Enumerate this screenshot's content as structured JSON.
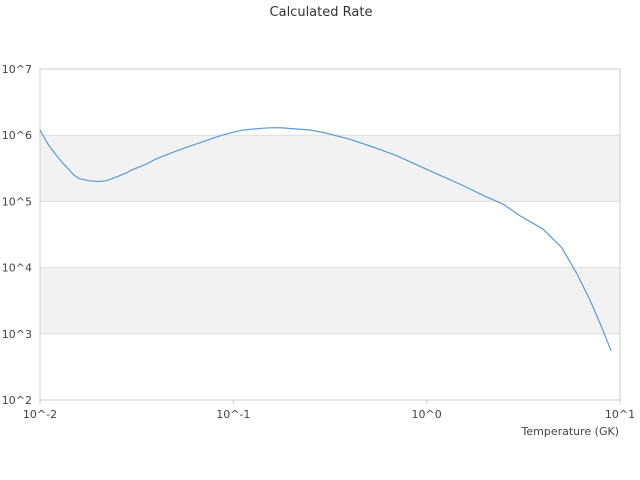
{
  "chart_data": {
    "type": "line",
    "title": "Calculated Rate",
    "xlabel": "Temperature (GK)",
    "ylabel": "",
    "x_scale": "log",
    "y_scale": "log",
    "xlim": [
      0.01,
      10
    ],
    "ylim": [
      100,
      10000000
    ],
    "x_ticks": [
      {
        "value": 0.01,
        "label": "10^-2"
      },
      {
        "value": 0.1,
        "label": "10^-1"
      },
      {
        "value": 1,
        "label": "10^0"
      },
      {
        "value": 10,
        "label": "10^1"
      }
    ],
    "y_ticks": [
      {
        "value": 100,
        "label": "10^2"
      },
      {
        "value": 1000,
        "label": "10^3"
      },
      {
        "value": 10000,
        "label": "10^4"
      },
      {
        "value": 100000,
        "label": "10^5"
      },
      {
        "value": 1000000,
        "label": "10^6"
      },
      {
        "value": 10000000,
        "label": "10^7"
      }
    ],
    "grid": true,
    "alternating_bands": true,
    "legend": "none",
    "colors": {
      "series": "#5b9bd5",
      "band": "#f2f2f2",
      "gridline": "#dddddd",
      "axis": "#cccccc"
    },
    "series": [
      {
        "x": [
          0.01,
          0.011,
          0.012,
          0.013,
          0.014,
          0.015,
          0.016,
          0.018,
          0.02,
          0.022,
          0.025,
          0.028,
          0.03,
          0.035,
          0.04,
          0.05,
          0.06,
          0.07,
          0.08,
          0.09,
          0.1,
          0.11,
          0.12,
          0.14,
          0.16,
          0.18,
          0.2,
          0.25,
          0.3,
          0.4,
          0.5,
          0.6,
          0.7,
          0.8,
          1.0,
          1.2,
          1.5,
          2.0,
          2.5,
          3.0,
          4.0,
          5.0,
          6.0,
          7.0,
          8.0,
          9.0
        ],
        "y": [
          1200000,
          730000,
          520000,
          390000,
          310000,
          250000,
          220000,
          205000,
          200000,
          205000,
          235000,
          270000,
          300000,
          360000,
          440000,
          570000,
          690000,
          800000,
          920000,
          1020000,
          1110000,
          1180000,
          1220000,
          1270000,
          1300000,
          1290000,
          1260000,
          1200000,
          1080000,
          870000,
          700000,
          580000,
          490000,
          410000,
          305000,
          240000,
          180000,
          120000,
          90000,
          62000,
          38000,
          20000,
          8000,
          3200,
          1300,
          550
        ]
      }
    ]
  }
}
